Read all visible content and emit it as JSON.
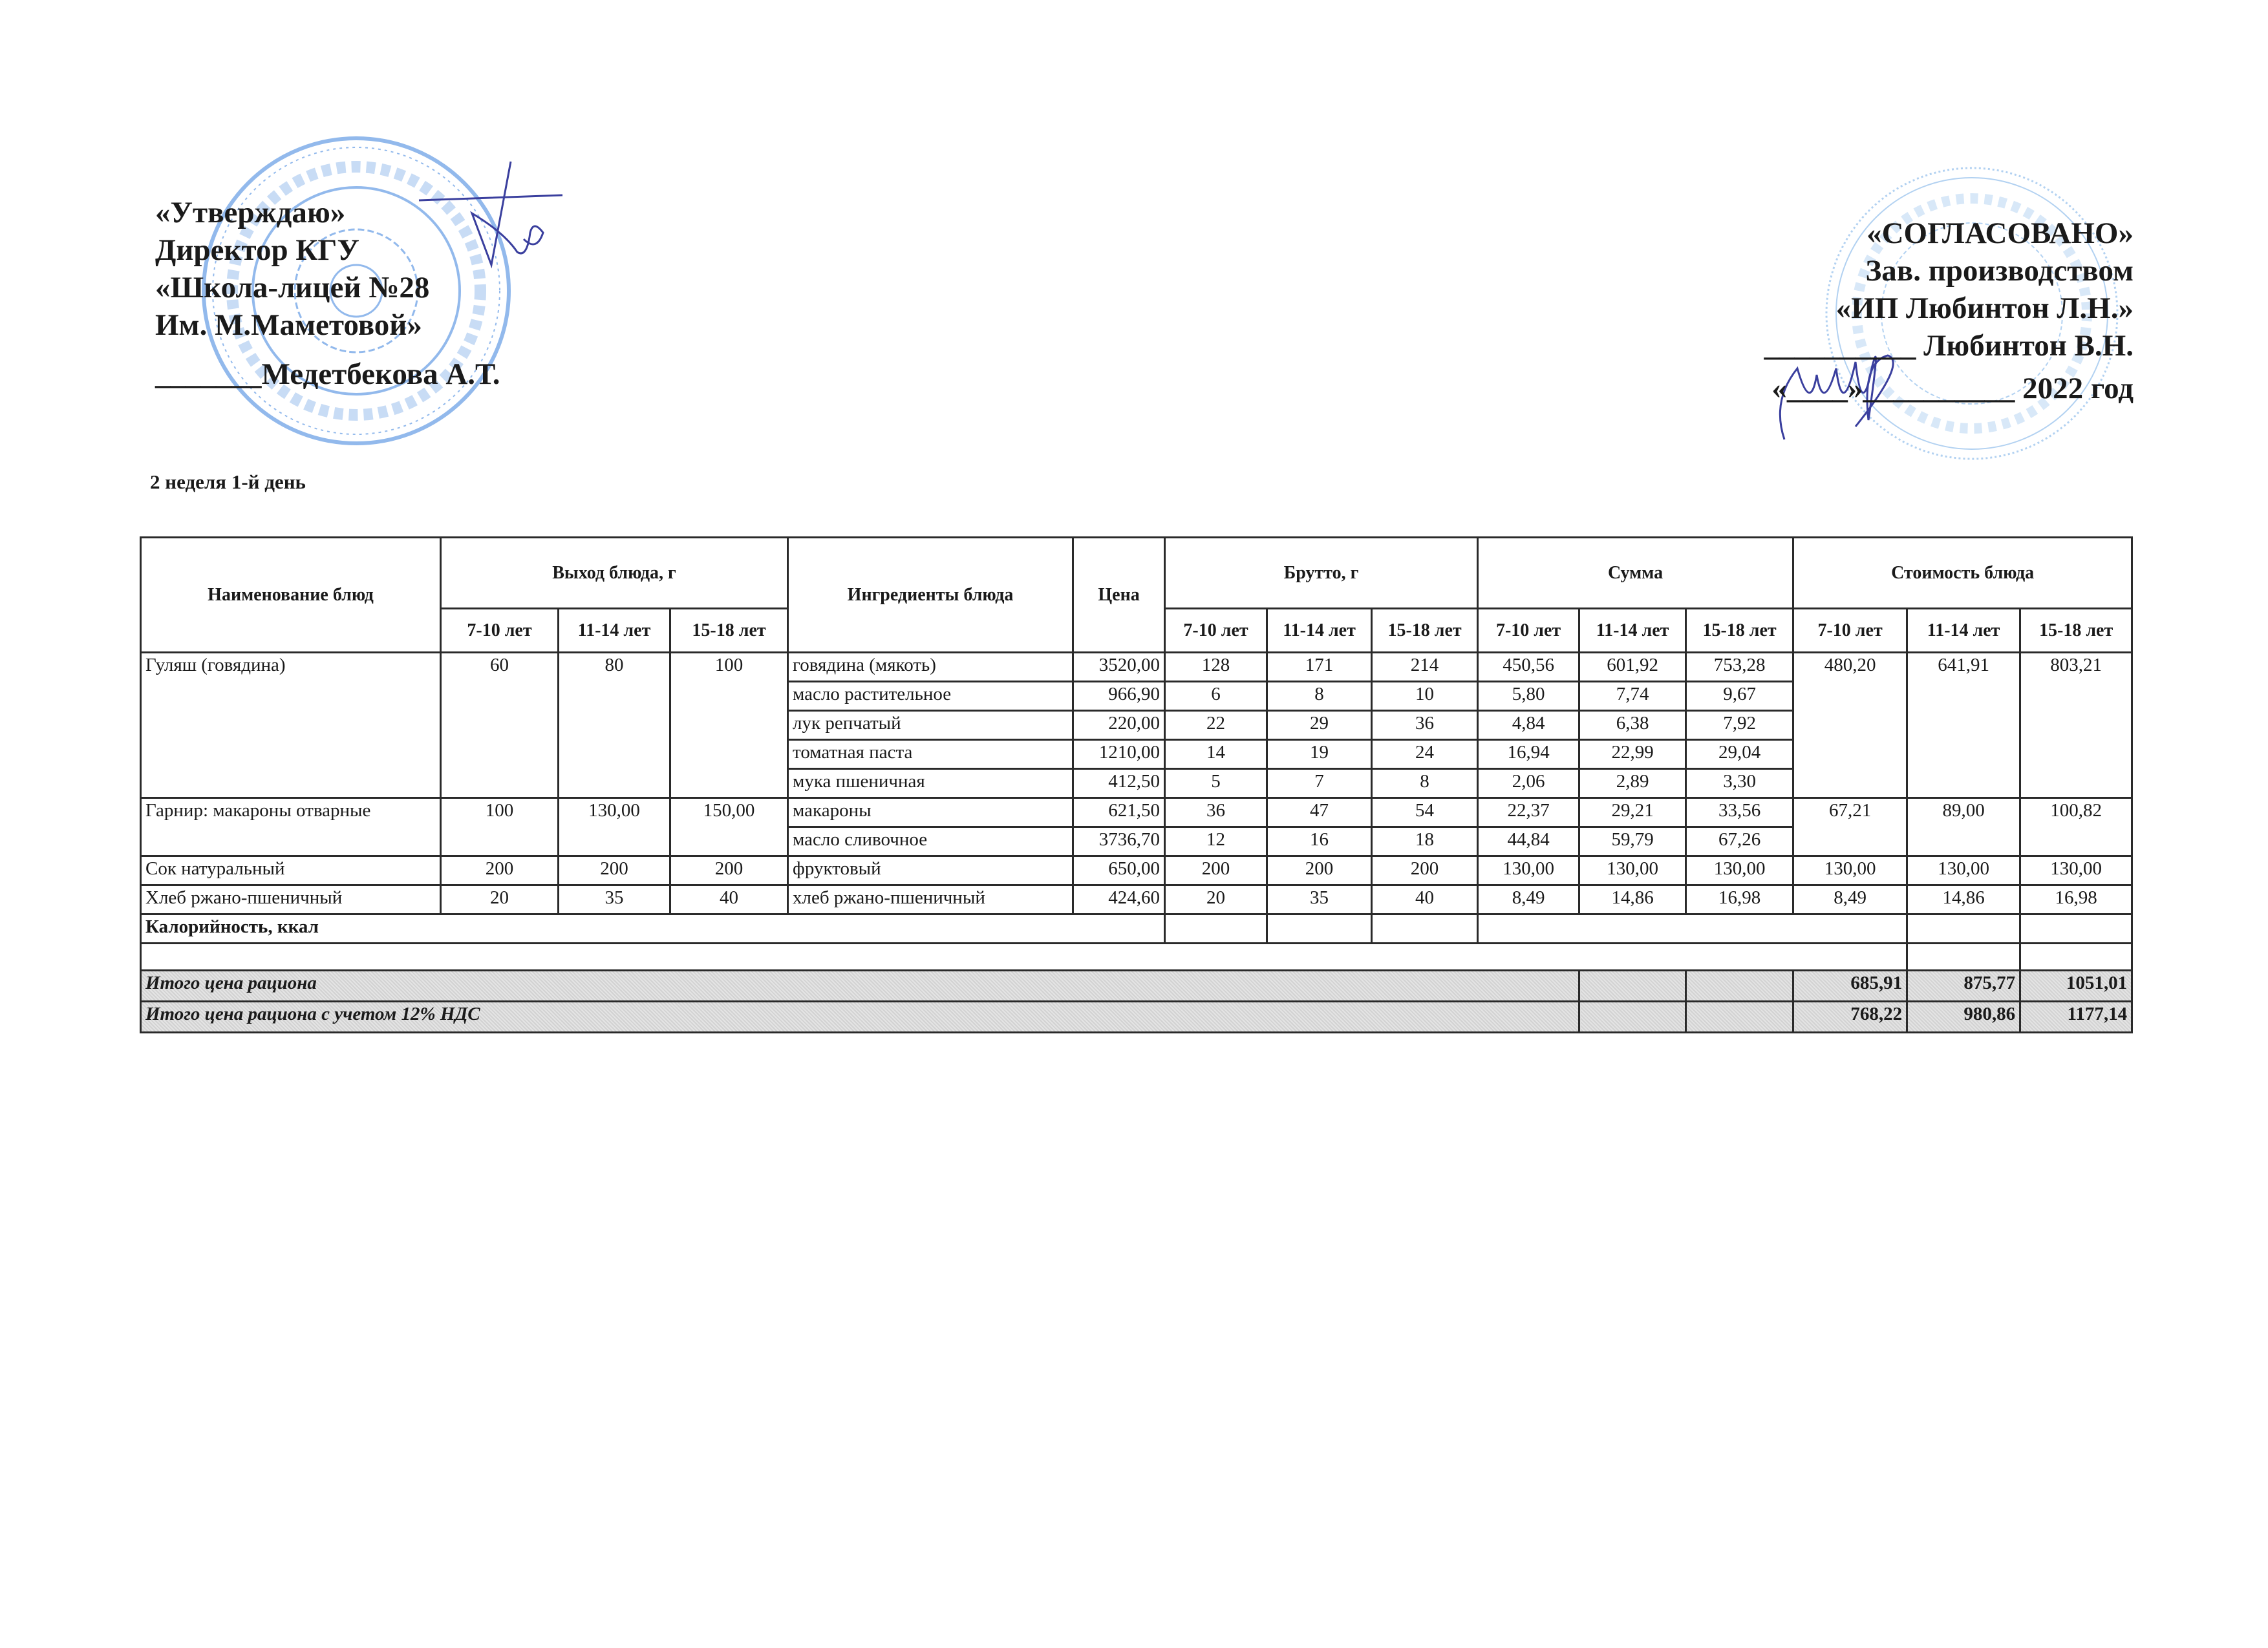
{
  "approve": {
    "lines": [
      "«Утверждаю»",
      "Директор КГУ",
      "«Школа-лицей №28",
      "Им. М.Маметовой»",
      "_______Медетбекова А.Т."
    ],
    "stamp_text": "«М. МӘМЕТОВА АТЫНДАҒЫ ... МЕМЛЕКЕТТІК МЕКТЕП ... АЛМАТЫ ҚАЛАСЫ ... БСН 990440..."
  },
  "agreed": {
    "lines": [
      "«СОГЛАСОВАНО»",
      "Зав. производством",
      "«ИП Любинтон Л.Н.»",
      "__________ Любинтон В.Н.",
      "«____»__________ 2022 год"
    ],
    "stamp_text": "Республикасы ... Қазақстан ... Любинтон ... Николаевна ... индивидуальный предприниматель ... 6061012..."
  },
  "day_label": "2 неделя 1-й день",
  "table": {
    "headers": {
      "dish_name": "Наименование блюд",
      "yield": "Выход блюда, г",
      "ingredients": "Ингредиенты блюда",
      "price": "Цена",
      "gross": "Брутто, г",
      "sum": "Сумма",
      "cost": "Стоимость блюда",
      "ages": [
        "7-10 лет",
        "11-14 лет",
        "15-18 лет"
      ]
    },
    "dishes": [
      {
        "name": "Гуляш (говядина)",
        "yield": [
          "60",
          "80",
          "100"
        ],
        "cost": [
          "480,20",
          "641,91",
          "803,21"
        ],
        "ingredients": [
          {
            "name": "говядина (мякоть)",
            "price": "3520,00",
            "gross": [
              "128",
              "171",
              "214"
            ],
            "sum": [
              "450,56",
              "601,92",
              "753,28"
            ]
          },
          {
            "name": "масло растительное",
            "price": "966,90",
            "gross": [
              "6",
              "8",
              "10"
            ],
            "sum": [
              "5,80",
              "7,74",
              "9,67"
            ]
          },
          {
            "name": "лук репчатый",
            "price": "220,00",
            "gross": [
              "22",
              "29",
              "36"
            ],
            "sum": [
              "4,84",
              "6,38",
              "7,92"
            ]
          },
          {
            "name": "томатная паста",
            "price": "1210,00",
            "gross": [
              "14",
              "19",
              "24"
            ],
            "sum": [
              "16,94",
              "22,99",
              "29,04"
            ]
          },
          {
            "name": "мука пшеничная",
            "price": "412,50",
            "gross": [
              "5",
              "7",
              "8"
            ],
            "sum": [
              "2,06",
              "2,89",
              "3,30"
            ]
          }
        ]
      },
      {
        "name": "Гарнир: макароны отварные",
        "yield": [
          "100",
          "130,00",
          "150,00"
        ],
        "cost": [
          "67,21",
          "89,00",
          "100,82"
        ],
        "ingredients": [
          {
            "name": "макароны",
            "price": "621,50",
            "gross": [
              "36",
              "47",
              "54"
            ],
            "sum": [
              "22,37",
              "29,21",
              "33,56"
            ]
          },
          {
            "name": "масло сливочное",
            "price": "3736,70",
            "gross": [
              "12",
              "16",
              "18"
            ],
            "sum": [
              "44,84",
              "59,79",
              "67,26"
            ]
          }
        ]
      },
      {
        "name": "Сок натуральный",
        "yield": [
          "200",
          "200",
          "200"
        ],
        "cost": [
          "130,00",
          "130,00",
          "130,00"
        ],
        "ingredients": [
          {
            "name": "фруктовый",
            "price": "650,00",
            "gross": [
              "200",
              "200",
              "200"
            ],
            "sum": [
              "130,00",
              "130,00",
              "130,00"
            ]
          }
        ]
      },
      {
        "name": "Хлеб ржано-пшеничный",
        "yield": [
          "20",
          "35",
          "40"
        ],
        "cost": [
          "8,49",
          "14,86",
          "16,98"
        ],
        "ingredients": [
          {
            "name": "хлеб ржано-пшеничный",
            "price": "424,60",
            "gross": [
              "20",
              "35",
              "40"
            ],
            "sum": [
              "8,49",
              "14,86",
              "16,98"
            ]
          }
        ]
      }
    ],
    "calories_label": "Калорийность, ккал",
    "total": {
      "label": "Итого цена рациона",
      "values": [
        "685,91",
        "875,77",
        "1051,01"
      ]
    },
    "total_vat": {
      "label": "Итого цена рациона с учетом 12% НДС",
      "values": [
        "768,22",
        "980,86",
        "1177,14"
      ]
    }
  },
  "colors": {
    "stamp_blue": "#3d7fd6",
    "signature_ink": "#3a3f9e",
    "total_row_bg": "#dcdcdc"
  }
}
